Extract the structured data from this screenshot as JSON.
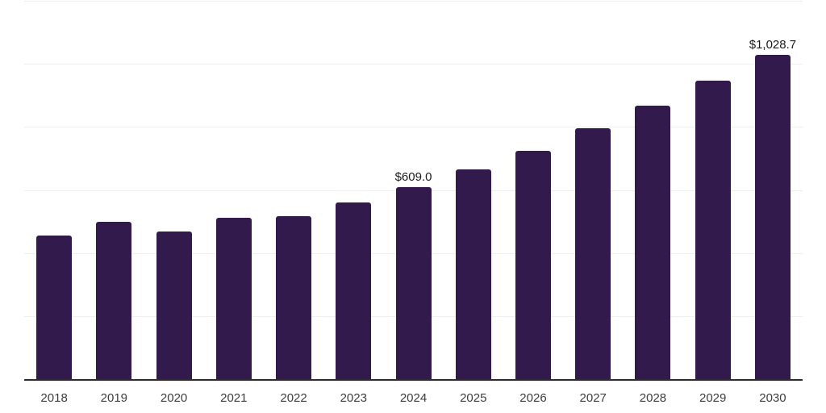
{
  "chart": {
    "background_color": "#ffffff",
    "bar_color": "#331a4d",
    "axis_line_color": "#2d2d2e",
    "gridline_color": "#efefef",
    "year_label_color": "#3d3d3d",
    "value_label_color": "#1a1a1a"
  },
  "chart_data": {
    "type": "bar",
    "title": "",
    "xlabel": "",
    "ylabel": "",
    "categories": [
      "2018",
      "2019",
      "2020",
      "2021",
      "2022",
      "2023",
      "2024",
      "2025",
      "2026",
      "2027",
      "2028",
      "2029",
      "2030"
    ],
    "values": [
      455,
      500,
      468,
      510.5,
      518,
      561.5,
      609.0,
      666,
      724,
      796,
      867,
      946,
      1028.7
    ],
    "point_labels": [
      "",
      "",
      "",
      "",
      "",
      "",
      "$609.0",
      "",
      "",
      "",
      "",
      "",
      "$1,028.7"
    ],
    "ylim": [
      0,
      1200
    ],
    "gridline_values": [
      200,
      400,
      600,
      800,
      1000,
      1200
    ],
    "y_tick_labels_visible": false,
    "grid": true,
    "legend": false,
    "legend_position": "none"
  }
}
